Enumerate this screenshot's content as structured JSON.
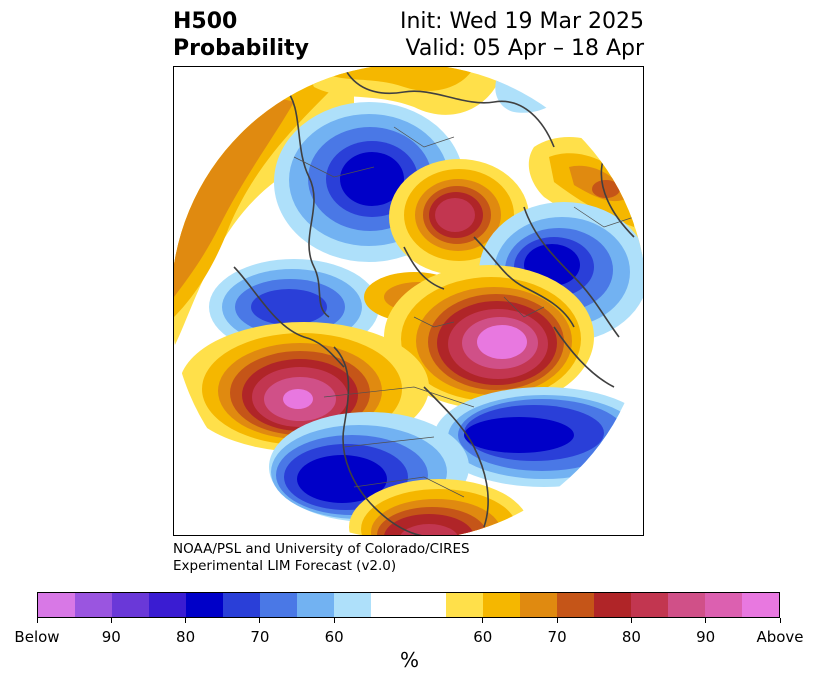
{
  "header": {
    "title_line1": "H500",
    "title_line2": "Probability",
    "init_text": "Init: Wed 19 Mar 2025",
    "valid_text": "Valid: 05 Apr – 18 Apr"
  },
  "credit": {
    "line1": "NOAA/PSL and University of Colorado/CIRES",
    "line2": "Experimental LIM Forecast (v2.0)"
  },
  "colorbar": {
    "unit": "%",
    "colors": [
      "#d878e6",
      "#9a55e0",
      "#6a38d8",
      "#3a1cd2",
      "#0000c8",
      "#2a3fd8",
      "#4a78e6",
      "#72b2f2",
      "#aee0fa",
      "#ffffff",
      "#ffffff",
      "#ffe04a",
      "#f5b700",
      "#e08a10",
      "#c55518",
      "#b02528",
      "#c23650",
      "#d05088",
      "#dc60b0",
      "#e878e0"
    ],
    "labels": [
      "Below",
      "90",
      "80",
      "70",
      "60",
      "60",
      "70",
      "80",
      "90",
      "Above"
    ]
  },
  "legend_colors": {
    "below_strong": "#0000c8",
    "below_weak": "#aee0fa",
    "above_weak": "#ffe04a",
    "above_strong": "#e878e0"
  }
}
